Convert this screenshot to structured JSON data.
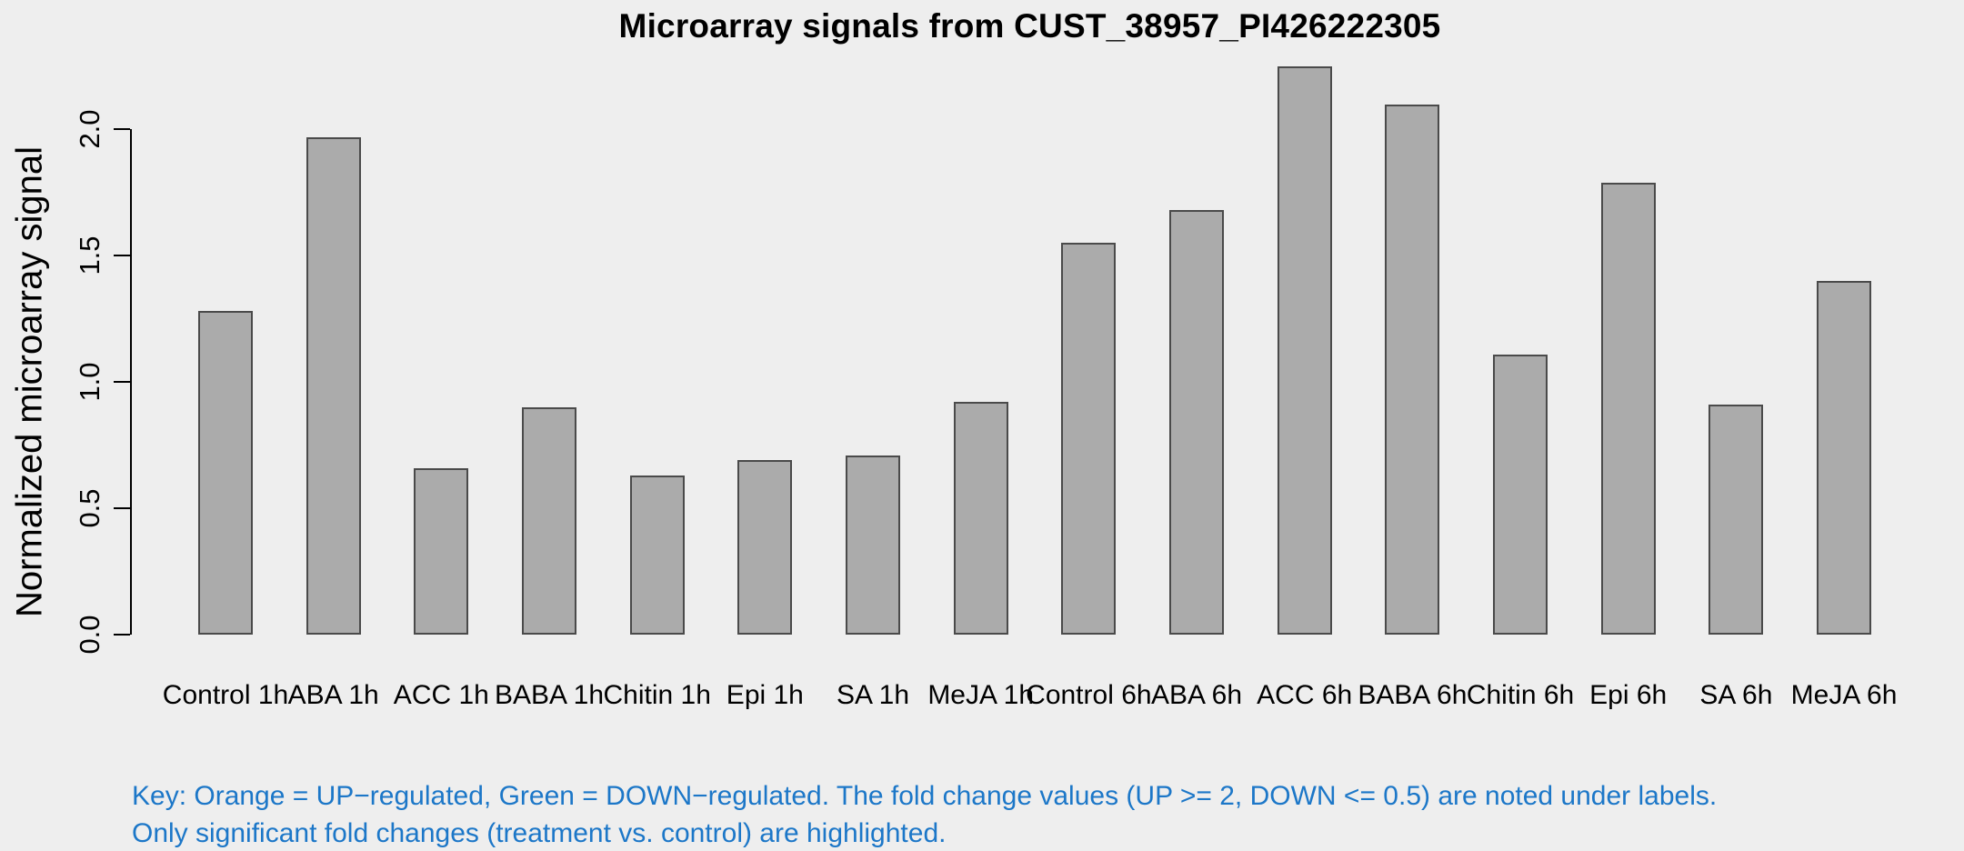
{
  "chart_data": {
    "type": "bar",
    "title": "Microarray signals from CUST_38957_PI426222305",
    "ylabel": "Normalized microarray signal",
    "xlabel": "",
    "categories": [
      "Control 1h",
      "ABA 1h",
      "ACC 1h",
      "BABA 1h",
      "Chitin 1h",
      "Epi 1h",
      "SA 1h",
      "MeJA 1h",
      "Control 6h",
      "ABA 6h",
      "ACC 6h",
      "BABA 6h",
      "Chitin 6h",
      "Epi 6h",
      "SA 6h",
      "MeJA 6h"
    ],
    "values": [
      1.28,
      1.97,
      0.66,
      0.9,
      0.63,
      0.69,
      0.71,
      0.92,
      1.55,
      1.68,
      2.25,
      2.1,
      1.11,
      1.79,
      0.91,
      1.4
    ],
    "yticks": [
      "0.0",
      "0.5",
      "1.0",
      "1.5",
      "2.0"
    ],
    "ytick_values": [
      0.0,
      0.5,
      1.0,
      1.5,
      2.0
    ],
    "ylim": [
      0,
      2.26
    ],
    "grid": false,
    "legend": "none",
    "bar_fill": "#ABABAB",
    "bar_border": "#4A4A4A"
  },
  "key": {
    "line1": "Key: Orange = UP−regulated, Green = DOWN−regulated. The fold change values (UP >= 2, DOWN <= 0.5) are noted under labels.",
    "line2": "Only significant fold changes (treatment vs. control) are highlighted."
  },
  "colors": {
    "background": "#EEEEEE",
    "key_text": "#1C77C8",
    "axis_text": "#000000"
  }
}
